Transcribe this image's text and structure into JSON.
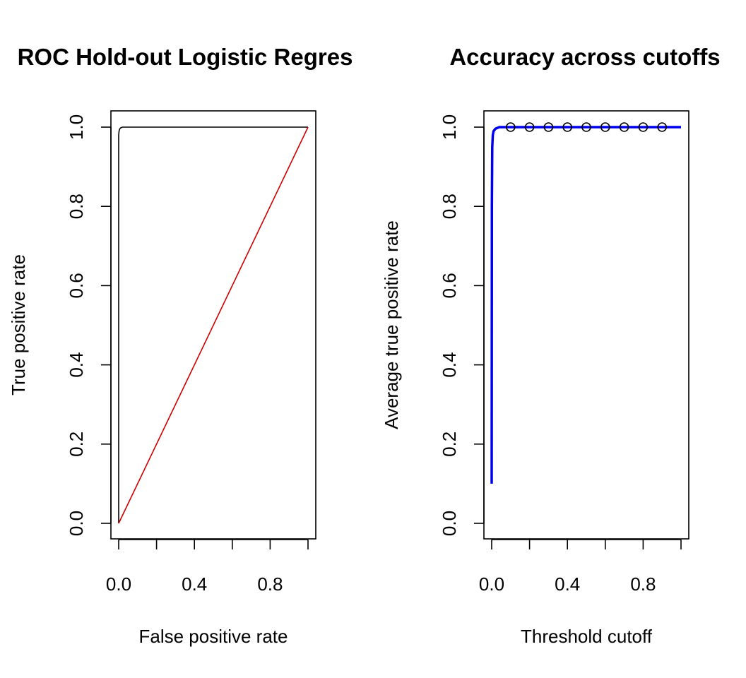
{
  "chart_data": [
    {
      "type": "line",
      "title": "ROC Hold-out Logistic Regres",
      "xlabel": "False positive rate",
      "ylabel": "True positive rate",
      "xlim": [
        0,
        1
      ],
      "ylim": [
        0,
        1
      ],
      "x_ticks": [
        "0.0",
        "0.2",
        "0.4",
        "0.6",
        "0.8",
        "1.0"
      ],
      "x_tick_labels_shown": [
        "0.0",
        "0.4",
        "0.8"
      ],
      "y_ticks": [
        "0.0",
        "0.2",
        "0.4",
        "0.6",
        "0.8",
        "1.0"
      ],
      "grid": false,
      "legend": "none",
      "series": [
        {
          "color": "#000000",
          "x": [
            0.0,
            0.0,
            0.002,
            0.005,
            0.01,
            0.02,
            0.04,
            1.0
          ],
          "y": [
            0.0,
            0.98,
            0.99,
            0.995,
            0.998,
            1.0,
            1.0,
            1.0
          ]
        },
        {
          "color": "#d00000",
          "x": [
            0.0,
            1.0
          ],
          "y": [
            0.0,
            1.0
          ]
        }
      ]
    },
    {
      "type": "line",
      "title": "Accuracy across cutoffs",
      "xlabel": "Threshold cutoff",
      "ylabel": "Average true positive rate",
      "xlim": [
        0,
        1
      ],
      "ylim": [
        0,
        1
      ],
      "x_ticks": [
        "0.0",
        "0.2",
        "0.4",
        "0.6",
        "0.8",
        "1.0"
      ],
      "x_tick_labels_shown": [
        "0.0",
        "0.4",
        "0.8"
      ],
      "y_ticks": [
        "0.0",
        "0.2",
        "0.4",
        "0.6",
        "0.8",
        "1.0"
      ],
      "grid": false,
      "legend": "none",
      "series": [
        {
          "color": "#0000ee",
          "x": [
            0.0,
            0.001,
            0.003,
            0.006,
            0.01,
            0.02,
            0.04,
            0.08,
            1.0
          ],
          "y": [
            0.1,
            0.8,
            0.95,
            0.98,
            0.99,
            0.996,
            1.0,
            1.0,
            1.0
          ]
        }
      ],
      "points": {
        "x": [
          0.1,
          0.2,
          0.3,
          0.4,
          0.5,
          0.6,
          0.7,
          0.8,
          0.9
        ],
        "y": [
          1.0,
          1.0,
          1.0,
          1.0,
          1.0,
          1.0,
          1.0,
          1.0,
          1.0
        ]
      }
    }
  ]
}
